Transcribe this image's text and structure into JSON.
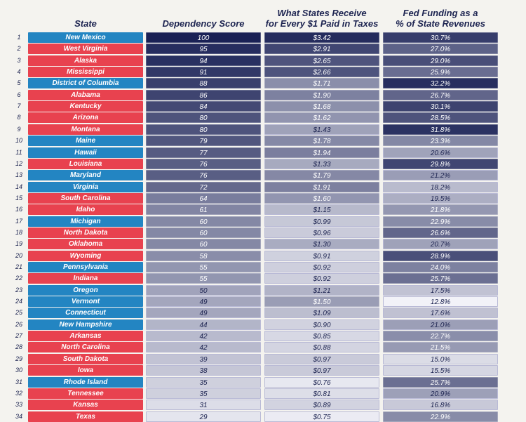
{
  "chart_data": {
    "type": "table",
    "columns": [
      "",
      "State",
      "Dependency Score",
      "What States Receive for Every $1 Paid in Taxes",
      "Fed Funding as a % of State Revenues"
    ],
    "header": {
      "state": "State",
      "score": "Dependency Score",
      "receive_line1": "What States Receive",
      "receive_line2": "for Every $1 Paid in Taxes",
      "funding_line1": "Fed Funding as a",
      "funding_line2": "% of State Revenues"
    },
    "party_colors": {
      "R": "#e8424f",
      "D": "#2385c2"
    },
    "scale_colors": {
      "light": "#f6f6fb",
      "dark": "#1a2155"
    },
    "rows": [
      {
        "rank": "1",
        "state": "New Mexico",
        "party": "D",
        "score": "100",
        "receive": "$3.42",
        "funding": "30.7%"
      },
      {
        "rank": "2",
        "state": "West Virginia",
        "party": "R",
        "score": "95",
        "receive": "$2.91",
        "funding": "27.0%"
      },
      {
        "rank": "3",
        "state": "Alaska",
        "party": "R",
        "score": "94",
        "receive": "$2.65",
        "funding": "29.0%"
      },
      {
        "rank": "4",
        "state": "Mississippi",
        "party": "R",
        "score": "91",
        "receive": "$2.66",
        "funding": "25.9%"
      },
      {
        "rank": "5",
        "state": "District of Columbia",
        "party": "D",
        "score": "88",
        "receive": "$1.71",
        "funding": "32.2%"
      },
      {
        "rank": "6",
        "state": "Alabama",
        "party": "R",
        "score": "86",
        "receive": "$1.90",
        "funding": "26.7%"
      },
      {
        "rank": "7",
        "state": "Kentucky",
        "party": "R",
        "score": "84",
        "receive": "$1.68",
        "funding": "30.1%"
      },
      {
        "rank": "8",
        "state": "Arizona",
        "party": "R",
        "score": "80",
        "receive": "$1.62",
        "funding": "28.5%"
      },
      {
        "rank": "9",
        "state": "Montana",
        "party": "R",
        "score": "80",
        "receive": "$1.43",
        "funding": "31.8%"
      },
      {
        "rank": "10",
        "state": "Maine",
        "party": "D",
        "score": "79",
        "receive": "$1.78",
        "funding": "23.3%"
      },
      {
        "rank": "11",
        "state": "Hawaii",
        "party": "D",
        "score": "77",
        "receive": "$1.94",
        "funding": "20.6%"
      },
      {
        "rank": "12",
        "state": "Louisiana",
        "party": "R",
        "score": "76",
        "receive": "$1.33",
        "funding": "29.8%"
      },
      {
        "rank": "13",
        "state": "Maryland",
        "party": "D",
        "score": "76",
        "receive": "$1.79",
        "funding": "21.2%"
      },
      {
        "rank": "14",
        "state": "Virginia",
        "party": "D",
        "score": "72",
        "receive": "$1.91",
        "funding": "18.2%"
      },
      {
        "rank": "15",
        "state": "South Carolina",
        "party": "R",
        "score": "64",
        "receive": "$1.60",
        "funding": "19.5%"
      },
      {
        "rank": "16",
        "state": "Idaho",
        "party": "R",
        "score": "61",
        "receive": "$1.15",
        "funding": "21.8%"
      },
      {
        "rank": "17",
        "state": "Michigan",
        "party": "D",
        "score": "60",
        "receive": "$0.99",
        "funding": "22.9%"
      },
      {
        "rank": "18",
        "state": "North Dakota",
        "party": "R",
        "score": "60",
        "receive": "$0.96",
        "funding": "26.6%"
      },
      {
        "rank": "19",
        "state": "Oklahoma",
        "party": "R",
        "score": "60",
        "receive": "$1.30",
        "funding": "20.7%"
      },
      {
        "rank": "20",
        "state": "Wyoming",
        "party": "R",
        "score": "58",
        "receive": "$0.91",
        "funding": "28.9%"
      },
      {
        "rank": "21",
        "state": "Pennsylvania",
        "party": "D",
        "score": "55",
        "receive": "$0.92",
        "funding": "24.0%"
      },
      {
        "rank": "22",
        "state": "Indiana",
        "party": "R",
        "score": "55",
        "receive": "$0.92",
        "funding": "25.7%"
      },
      {
        "rank": "23",
        "state": "Oregon",
        "party": "D",
        "score": "50",
        "receive": "$1.21",
        "funding": "17.5%"
      },
      {
        "rank": "24",
        "state": "Vermont",
        "party": "D",
        "score": "49",
        "receive": "$1.50",
        "funding": "12.8%"
      },
      {
        "rank": "25",
        "state": "Connecticut",
        "party": "D",
        "score": "49",
        "receive": "$1.09",
        "funding": "17.6%"
      },
      {
        "rank": "26",
        "state": "New Hampshire",
        "party": "D",
        "score": "44",
        "receive": "$0.90",
        "funding": "21.0%"
      },
      {
        "rank": "27",
        "state": "Arkansas",
        "party": "R",
        "score": "42",
        "receive": "$0.85",
        "funding": "22.7%"
      },
      {
        "rank": "28",
        "state": "North Carolina",
        "party": "R",
        "score": "42",
        "receive": "$0.88",
        "funding": "21.5%"
      },
      {
        "rank": "29",
        "state": "South Dakota",
        "party": "R",
        "score": "39",
        "receive": "$0.97",
        "funding": "15.0%"
      },
      {
        "rank": "30",
        "state": "Iowa",
        "party": "R",
        "score": "38",
        "receive": "$0.97",
        "funding": "15.5%"
      },
      {
        "rank": "31",
        "state": "Rhode Island",
        "party": "D",
        "score": "35",
        "receive": "$0.76",
        "funding": "25.7%"
      },
      {
        "rank": "32",
        "state": "Tennessee",
        "party": "R",
        "score": "35",
        "receive": "$0.81",
        "funding": "20.9%"
      },
      {
        "rank": "33",
        "state": "Kansas",
        "party": "R",
        "score": "31",
        "receive": "$0.89",
        "funding": "16.8%"
      },
      {
        "rank": "34",
        "state": "Texas",
        "party": "R",
        "score": "29",
        "receive": "$0.75",
        "funding": "22.9%"
      }
    ]
  }
}
